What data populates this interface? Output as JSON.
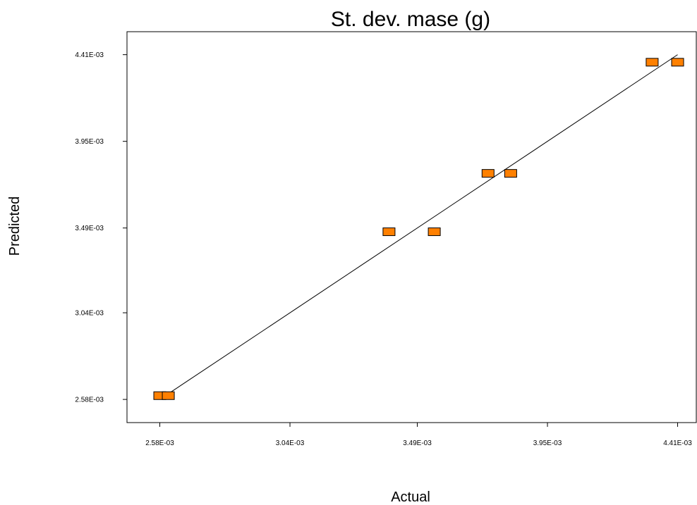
{
  "chart_data": {
    "type": "scatter",
    "title": "St. dev. mase (g)",
    "xlabel": "Actual",
    "ylabel": "Predicted",
    "x_ticks": [
      0.00258,
      0.00304,
      0.00349,
      0.00395,
      0.00441
    ],
    "x_tick_labels": [
      "2.58E-03",
      "3.04E-03",
      "3.49E-03",
      "3.95E-03",
      "4.41E-03"
    ],
    "y_ticks": [
      0.00258,
      0.00304,
      0.00349,
      0.00395,
      0.00441
    ],
    "y_tick_labels": [
      "2.58E-03",
      "3.04E-03",
      "3.49E-03",
      "3.95E-03",
      "4.41E-03"
    ],
    "xlim": [
      0.002464,
      0.004476
    ],
    "ylim": [
      0.002457,
      0.004532
    ],
    "grid": false,
    "marker_color": "#ff8000",
    "marker_edge_color": "#000000",
    "points": [
      {
        "x": 0.00258,
        "y": 0.0026
      },
      {
        "x": 0.00261,
        "y": 0.0026
      },
      {
        "x": 0.00339,
        "y": 0.00347
      },
      {
        "x": 0.00355,
        "y": 0.00347
      },
      {
        "x": 0.00374,
        "y": 0.00378
      },
      {
        "x": 0.00382,
        "y": 0.00378
      },
      {
        "x": 0.00432,
        "y": 0.00437
      },
      {
        "x": 0.00441,
        "y": 0.00437
      }
    ],
    "fit_line": {
      "x": [
        0.00258,
        0.00441
      ],
      "y": [
        0.00258,
        0.00441
      ]
    }
  }
}
